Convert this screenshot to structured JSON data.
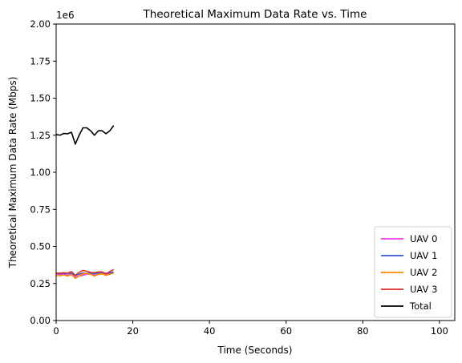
{
  "chart_data": {
    "type": "line",
    "title": "Theoretical Maximum Data Rate vs. Time",
    "xlabel": "Time (Seconds)",
    "ylabel": "Theoretical Maximum Data Rate (Mbps)",
    "y_offset_label": "1e6",
    "xlim": [
      0,
      104
    ],
    "ylim": [
      0,
      2000000
    ],
    "xticks": [
      0,
      20,
      40,
      60,
      80,
      100
    ],
    "xtick_labels": [
      "0",
      "20",
      "40",
      "60",
      "80",
      "100"
    ],
    "yticks": [
      0,
      250000,
      500000,
      750000,
      1000000,
      1250000,
      1500000,
      1750000,
      2000000
    ],
    "ytick_labels": [
      "0.00",
      "0.25",
      "0.50",
      "0.75",
      "1.00",
      "1.25",
      "1.50",
      "1.75",
      "2.00"
    ],
    "grid": false,
    "legend_position": "bottom-right",
    "x": [
      0,
      1,
      2,
      3,
      4,
      5,
      6,
      7,
      8,
      9,
      10,
      11,
      12,
      13,
      14,
      15
    ],
    "series": [
      {
        "name": "UAV 0",
        "color": "#e83ce8",
        "values": [
          315000,
          310000,
          312000,
          308000,
          315000,
          295000,
          300000,
          305000,
          312000,
          316000,
          305000,
          310000,
          318000,
          312000,
          315000,
          322000
        ]
      },
      {
        "name": "UAV 1",
        "color": "#3a55d8",
        "values": [
          320000,
          318000,
          315000,
          320000,
          318000,
          305000,
          312000,
          320000,
          318000,
          322000,
          315000,
          320000,
          325000,
          318000,
          322000,
          328000
        ]
      },
      {
        "name": "UAV 2",
        "color": "#ff8c00",
        "values": [
          305000,
          302000,
          308000,
          300000,
          310000,
          285000,
          300000,
          315000,
          318000,
          312000,
          300000,
          312000,
          315000,
          305000,
          312000,
          320000
        ]
      },
      {
        "name": "UAV 3",
        "color": "#e03030",
        "values": [
          318000,
          320000,
          322000,
          320000,
          330000,
          305000,
          325000,
          338000,
          332000,
          325000,
          322000,
          328000,
          328000,
          315000,
          330000,
          345000
        ]
      },
      {
        "name": "Total",
        "color": "#000000",
        "values": [
          1255000,
          1250000,
          1262000,
          1260000,
          1270000,
          1190000,
          1250000,
          1300000,
          1300000,
          1280000,
          1250000,
          1280000,
          1280000,
          1260000,
          1280000,
          1315000
        ]
      }
    ]
  }
}
